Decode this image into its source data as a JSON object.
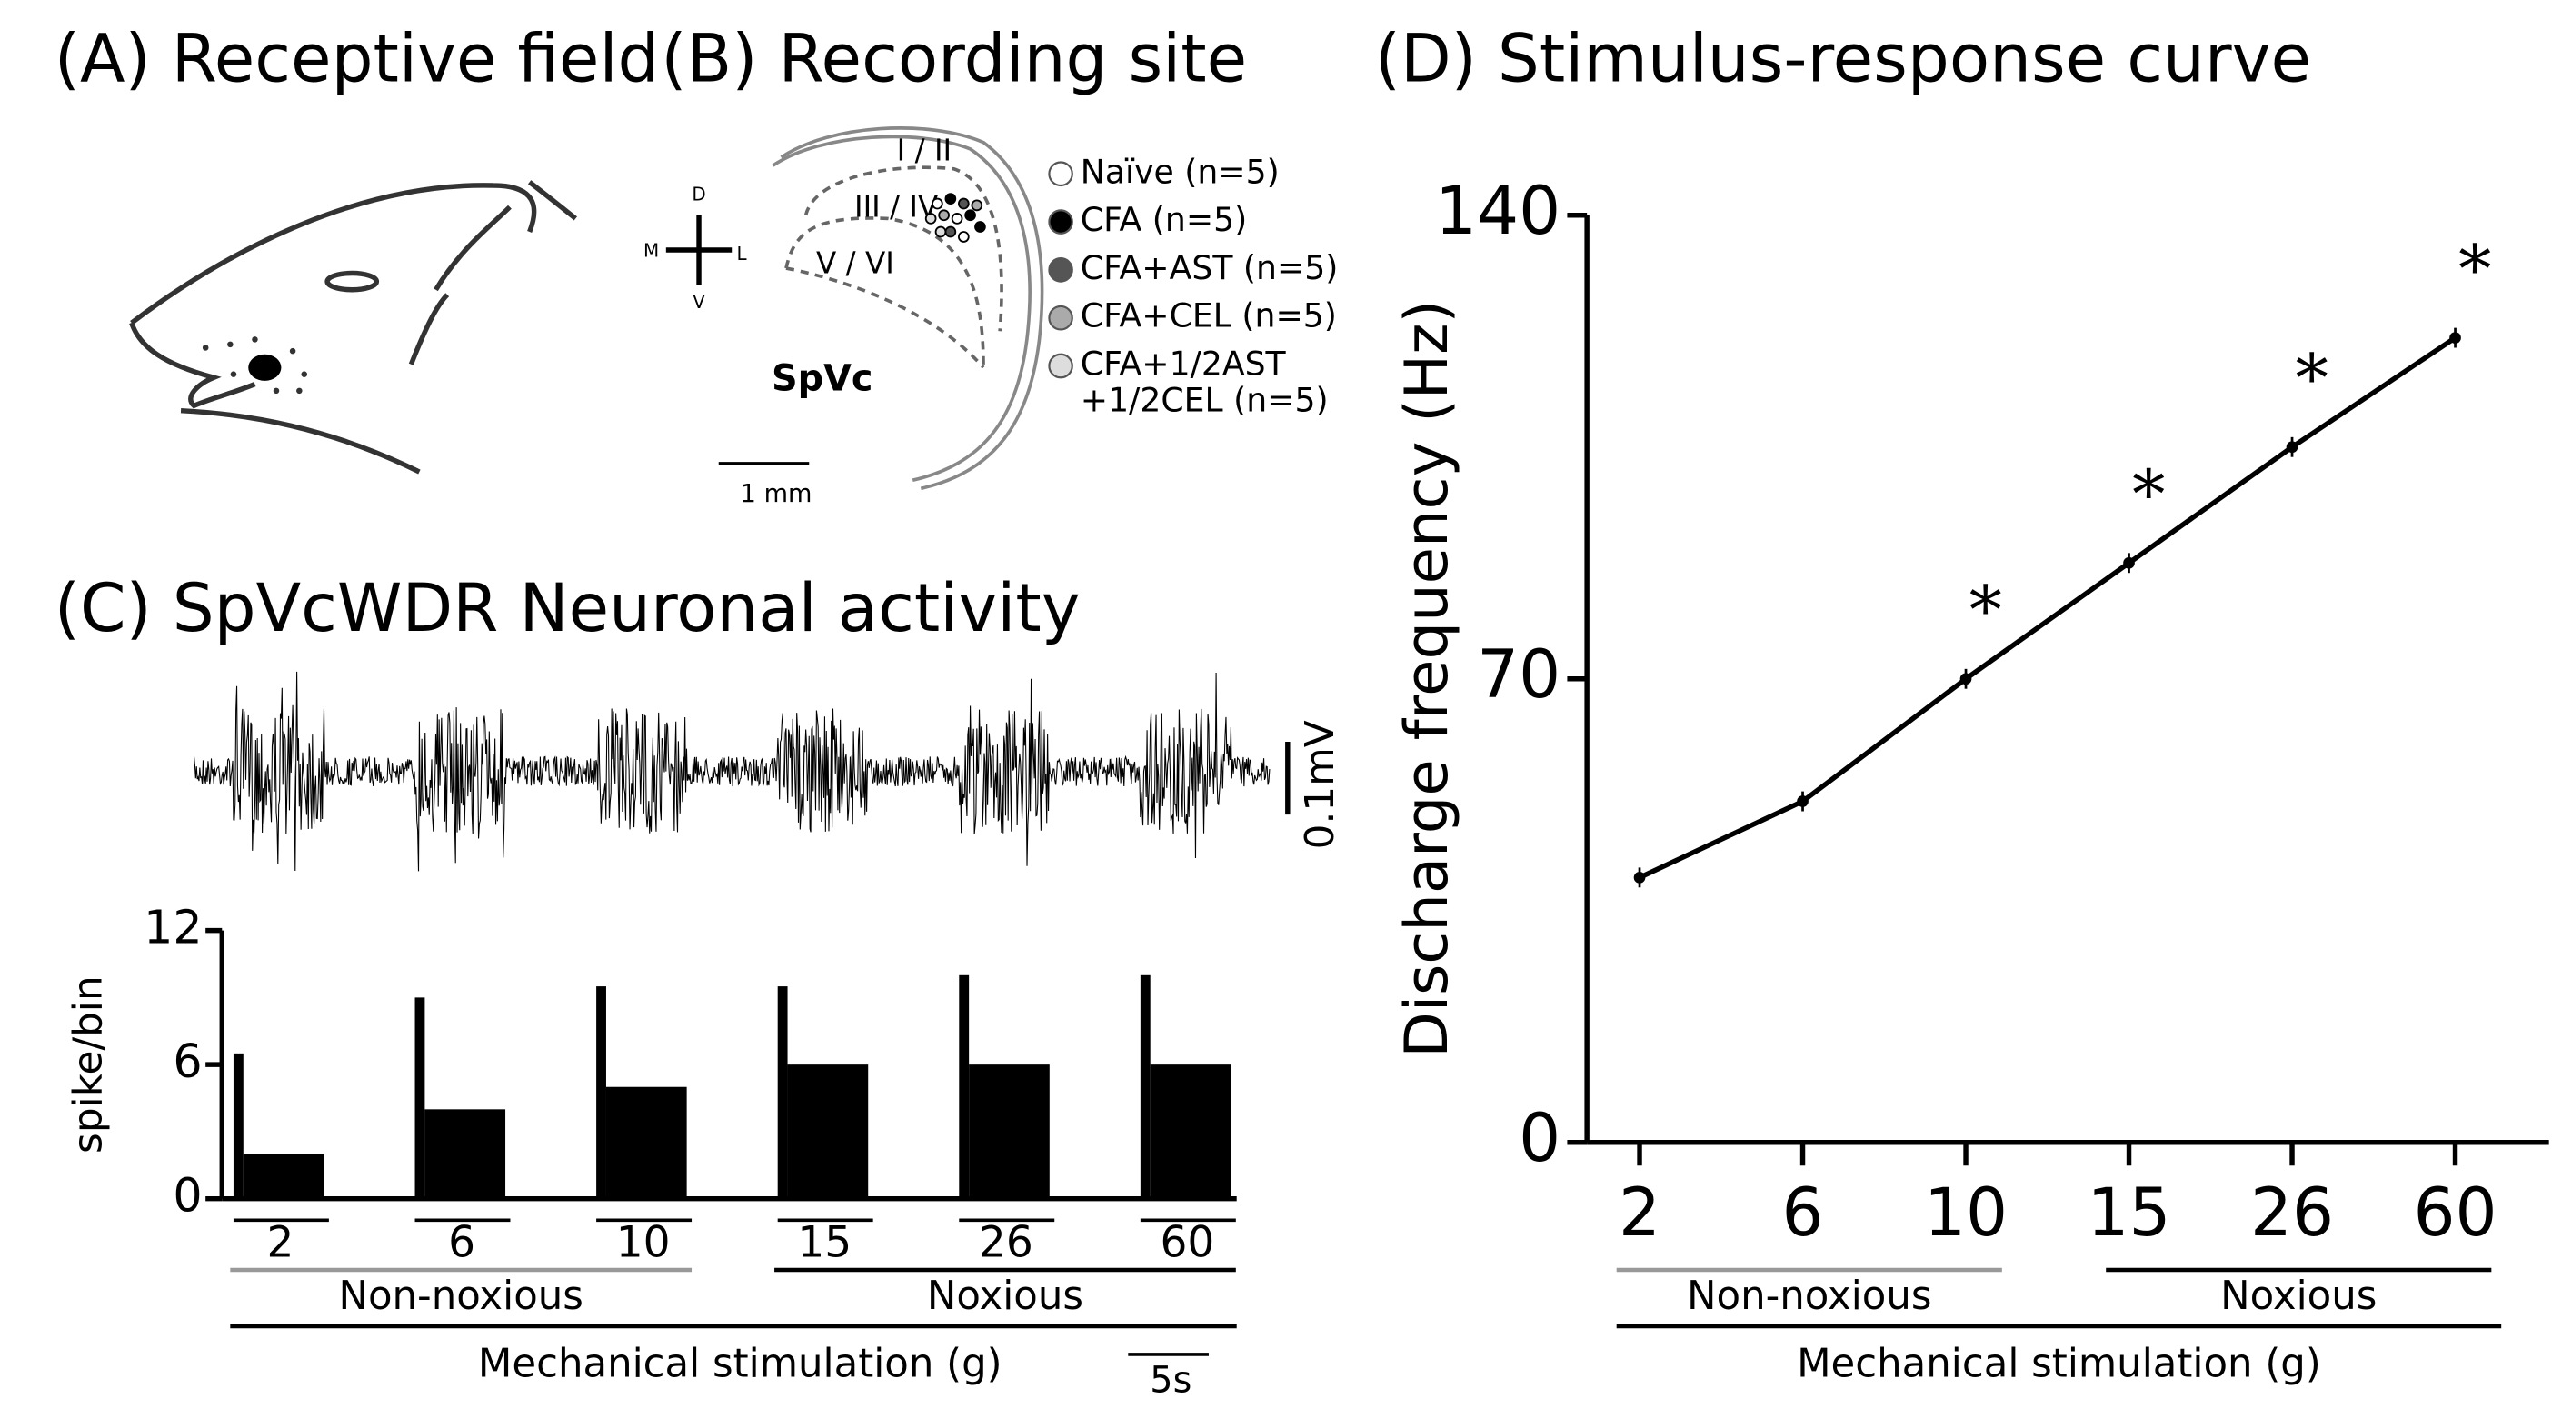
{
  "panel_a": {
    "title": "(A) Receptive field"
  },
  "panel_b": {
    "title": "(B) Recording site",
    "orientation": {
      "dorsal": "D",
      "medial": "M",
      "lateral": "L",
      "ventral": "V"
    },
    "layers": [
      "I / II",
      "III / IV",
      "V / VI"
    ],
    "region": "SpVc",
    "scale": "1 mm",
    "legend": [
      {
        "lines": [
          "Naïve (n=5)"
        ],
        "color": "#ffffff"
      },
      {
        "lines": [
          "CFA (n=5)"
        ],
        "color": "#000000"
      },
      {
        "lines": [
          "CFA+AST (n=5)"
        ],
        "color": "#555555"
      },
      {
        "lines": [
          "CFA+CEL (n=5)"
        ],
        "color": "#aaaaaa"
      },
      {
        "lines": [
          "CFA+1/2AST",
          "+1/2CEL (n=5)"
        ],
        "color": "#dddddd"
      }
    ]
  },
  "panel_c": {
    "title": "(C) SpVcWDR Neuronal activity",
    "trace_scale": "0.1mV",
    "ylabel": "spike/bin",
    "ylim": [
      0,
      12
    ],
    "yticks": [
      0,
      6,
      12
    ],
    "stimuli": [
      "2",
      "6",
      "10",
      "15",
      "26",
      "60"
    ],
    "histogram": {
      "peaks": [
        6.5,
        9,
        9.5,
        9.5,
        10,
        10
      ],
      "levels": [
        2,
        4,
        5,
        6,
        6,
        6
      ]
    },
    "groups": [
      {
        "label": "Non-noxious",
        "color": "#999999",
        "count": 3
      },
      {
        "label": "Noxious",
        "color": "#000000",
        "count": 3
      }
    ],
    "xlabel": "Mechanical stimulation (g)",
    "time_scale": "5s"
  },
  "chart_data": {
    "type": "line",
    "title": "(D) Stimulus-response curve",
    "ylabel": "Discharge frequency (Hz)",
    "xlabel": "Mechanical stimulation (g)",
    "categories": [
      "2",
      "6",
      "10",
      "15",
      "26",
      "60"
    ],
    "values": [
      40,
      51.5,
      70,
      87.5,
      105,
      121.5
    ],
    "errors": [
      1.5,
      1.5,
      1.5,
      1.5,
      1.5,
      1.5
    ],
    "color": "#000000",
    "ylim": [
      0,
      140
    ],
    "yticks": [
      0,
      70,
      140
    ],
    "annotations": [
      {
        "text": "*",
        "category": "10"
      },
      {
        "text": "*",
        "category": "15"
      },
      {
        "text": "*",
        "category": "26"
      },
      {
        "text": "*",
        "category": "60"
      }
    ],
    "groups": [
      {
        "label": "Non-noxious",
        "color": "#999999",
        "categories": [
          "2",
          "6",
          "10"
        ]
      },
      {
        "label": "Noxious",
        "color": "#000000",
        "categories": [
          "15",
          "26",
          "60"
        ]
      }
    ]
  }
}
